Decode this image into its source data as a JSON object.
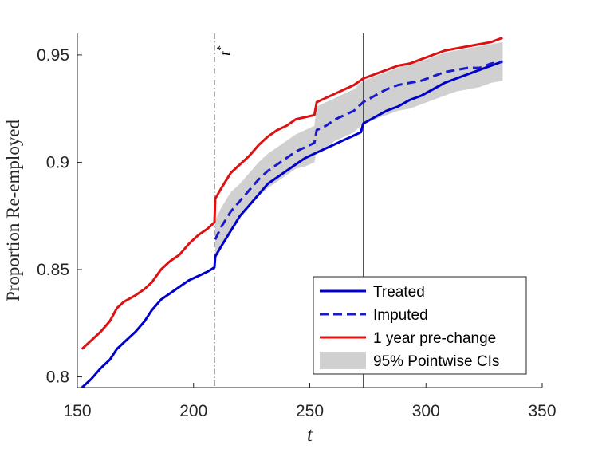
{
  "chart_data": {
    "type": "line",
    "xlabel": "t",
    "ylabel": "Proportion Re-employed",
    "xlim": [
      150,
      350
    ],
    "ylim": [
      0.795,
      0.96
    ],
    "xticks": [
      150,
      200,
      250,
      300,
      350
    ],
    "xtick_labels": [
      "150",
      "200",
      "250",
      "300",
      "350"
    ],
    "yticks": [
      0.8,
      0.85,
      0.9,
      0.95
    ],
    "ytick_labels": [
      "0.8",
      "0.85",
      "0.9",
      "0.95"
    ],
    "vlines": [
      {
        "x": 209,
        "style": "dashdot",
        "label": "t*"
      },
      {
        "x": 273,
        "style": "solid"
      }
    ],
    "annotation": {
      "base": "t",
      "sup": "*"
    },
    "legend_position": "bottom-right",
    "series": [
      {
        "name": "Treated",
        "color": "#0000CC",
        "style": "solid",
        "points": [
          [
            152,
            0.795
          ],
          [
            156,
            0.799
          ],
          [
            160,
            0.804
          ],
          [
            164,
            0.808
          ],
          [
            167,
            0.813
          ],
          [
            170,
            0.816
          ],
          [
            175,
            0.821
          ],
          [
            179,
            0.826
          ],
          [
            182,
            0.831
          ],
          [
            186,
            0.836
          ],
          [
            190,
            0.839
          ],
          [
            194,
            0.842
          ],
          [
            198,
            0.845
          ],
          [
            202,
            0.847
          ],
          [
            206,
            0.849
          ],
          [
            209,
            0.851
          ],
          [
            209.3,
            0.856
          ],
          [
            212,
            0.861
          ],
          [
            216,
            0.868
          ],
          [
            220,
            0.875
          ],
          [
            224,
            0.88
          ],
          [
            228,
            0.885
          ],
          [
            232,
            0.89
          ],
          [
            236,
            0.893
          ],
          [
            240,
            0.896
          ],
          [
            244,
            0.899
          ],
          [
            248,
            0.902
          ],
          [
            252,
            0.904
          ],
          [
            256,
            0.906
          ],
          [
            260,
            0.908
          ],
          [
            264,
            0.91
          ],
          [
            268,
            0.912
          ],
          [
            272,
            0.914
          ],
          [
            273,
            0.918
          ],
          [
            278,
            0.921
          ],
          [
            283,
            0.924
          ],
          [
            288,
            0.926
          ],
          [
            293,
            0.929
          ],
          [
            298,
            0.931
          ],
          [
            303,
            0.934
          ],
          [
            308,
            0.937
          ],
          [
            313,
            0.939
          ],
          [
            318,
            0.941
          ],
          [
            323,
            0.943
          ],
          [
            328,
            0.945
          ],
          [
            333,
            0.947
          ]
        ]
      },
      {
        "name": "Imputed",
        "color": "#1A1ACC",
        "style": "dashed",
        "points": [
          [
            209.3,
            0.864
          ],
          [
            212,
            0.87
          ],
          [
            216,
            0.877
          ],
          [
            220,
            0.882
          ],
          [
            224,
            0.887
          ],
          [
            228,
            0.892
          ],
          [
            232,
            0.896
          ],
          [
            236,
            0.899
          ],
          [
            240,
            0.902
          ],
          [
            244,
            0.905
          ],
          [
            248,
            0.907
          ],
          [
            252,
            0.909
          ],
          [
            253,
            0.915
          ],
          [
            257,
            0.917
          ],
          [
            261,
            0.92
          ],
          [
            265,
            0.922
          ],
          [
            269,
            0.924
          ],
          [
            273,
            0.928
          ],
          [
            278,
            0.931
          ],
          [
            283,
            0.934
          ],
          [
            288,
            0.936
          ],
          [
            293,
            0.937
          ],
          [
            298,
            0.938
          ],
          [
            303,
            0.94
          ],
          [
            308,
            0.942
          ],
          [
            313,
            0.943
          ],
          [
            318,
            0.944
          ],
          [
            323,
            0.944
          ],
          [
            328,
            0.946
          ],
          [
            333,
            0.947
          ]
        ]
      },
      {
        "name": "1 year pre-change",
        "color": "#DD1111",
        "style": "solid",
        "points": [
          [
            152,
            0.813
          ],
          [
            156,
            0.817
          ],
          [
            160,
            0.821
          ],
          [
            164,
            0.826
          ],
          [
            167,
            0.832
          ],
          [
            170,
            0.835
          ],
          [
            175,
            0.838
          ],
          [
            179,
            0.841
          ],
          [
            182,
            0.844
          ],
          [
            186,
            0.85
          ],
          [
            190,
            0.854
          ],
          [
            194,
            0.857
          ],
          [
            198,
            0.862
          ],
          [
            202,
            0.866
          ],
          [
            206,
            0.869
          ],
          [
            209,
            0.872
          ],
          [
            209.3,
            0.883
          ],
          [
            212,
            0.888
          ],
          [
            216,
            0.895
          ],
          [
            220,
            0.899
          ],
          [
            224,
            0.903
          ],
          [
            228,
            0.908
          ],
          [
            232,
            0.912
          ],
          [
            236,
            0.915
          ],
          [
            240,
            0.917
          ],
          [
            244,
            0.92
          ],
          [
            248,
            0.921
          ],
          [
            252,
            0.922
          ],
          [
            253,
            0.928
          ],
          [
            257,
            0.93
          ],
          [
            261,
            0.932
          ],
          [
            265,
            0.934
          ],
          [
            269,
            0.936
          ],
          [
            273,
            0.939
          ],
          [
            278,
            0.941
          ],
          [
            283,
            0.943
          ],
          [
            288,
            0.945
          ],
          [
            293,
            0.946
          ],
          [
            298,
            0.948
          ],
          [
            303,
            0.95
          ],
          [
            308,
            0.952
          ],
          [
            313,
            0.953
          ],
          [
            318,
            0.954
          ],
          [
            323,
            0.955
          ],
          [
            328,
            0.956
          ],
          [
            333,
            0.958
          ]
        ]
      }
    ],
    "band": {
      "name": "95% Pointwise CIs",
      "color": "#D0D0D0",
      "x": [
        209.3,
        212,
        216,
        220,
        224,
        228,
        232,
        236,
        240,
        244,
        248,
        252,
        253,
        257,
        261,
        265,
        269,
        273,
        278,
        283,
        288,
        293,
        298,
        303,
        308,
        313,
        318,
        323,
        328,
        333
      ],
      "lower": [
        0.857,
        0.862,
        0.869,
        0.874,
        0.879,
        0.884,
        0.888,
        0.891,
        0.894,
        0.897,
        0.898,
        0.9,
        0.905,
        0.907,
        0.91,
        0.912,
        0.914,
        0.918,
        0.92,
        0.922,
        0.924,
        0.925,
        0.927,
        0.929,
        0.931,
        0.933,
        0.934,
        0.935,
        0.937,
        0.938
      ],
      "upper": [
        0.873,
        0.879,
        0.886,
        0.89,
        0.895,
        0.9,
        0.904,
        0.907,
        0.91,
        0.913,
        0.915,
        0.917,
        0.926,
        0.928,
        0.93,
        0.932,
        0.934,
        0.938,
        0.94,
        0.942,
        0.944,
        0.946,
        0.947,
        0.949,
        0.951,
        0.952,
        0.953,
        0.954,
        0.955,
        0.956
      ]
    },
    "legend_entries": [
      "Treated",
      "Imputed",
      "1 year pre-change",
      "95% Pointwise CIs"
    ]
  }
}
